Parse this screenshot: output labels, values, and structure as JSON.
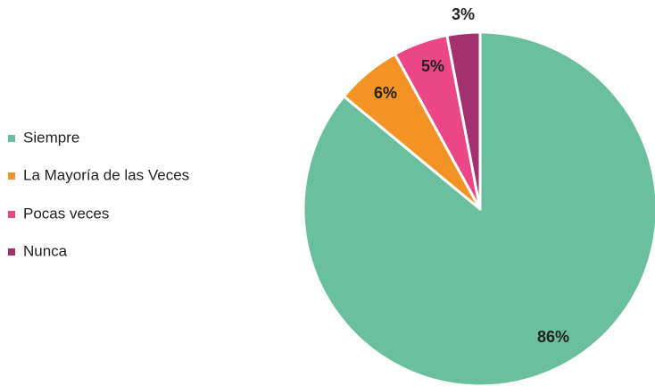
{
  "chart_data": {
    "type": "pie",
    "categories": [
      "Siempre",
      "La Mayoría de las Veces",
      "Pocas veces",
      "Nunca"
    ],
    "values": [
      86,
      6,
      5,
      3
    ],
    "value_labels": [
      "86%",
      "6%",
      "5%",
      "3%"
    ],
    "colors": [
      "#6abf9f",
      "#f29323",
      "#eb4786",
      "#a3306f"
    ],
    "legend": "left"
  }
}
